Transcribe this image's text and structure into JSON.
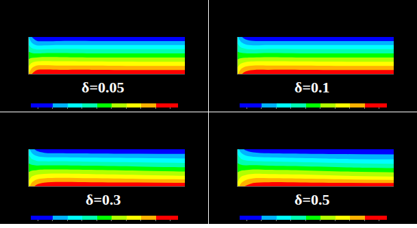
{
  "chart_data": [
    {
      "type": "contour",
      "title": "δ=0.05",
      "x": [
        0,
        0.02,
        0.05,
        0.1,
        0.2,
        0.4,
        0.7,
        1
      ],
      "y": [
        0,
        0.25,
        0.5,
        0.75,
        1
      ],
      "z": [
        [
          7,
          8,
          8.8,
          9,
          9,
          9,
          9,
          9
        ],
        [
          5.8,
          6.4,
          6.8,
          6.9,
          6.8,
          6.8,
          6.7,
          6.7
        ],
        [
          4.5,
          4.5,
          4.5,
          4.6,
          4.6,
          4.5,
          4.5,
          4.5
        ],
        [
          3.2,
          2.6,
          2.2,
          2.2,
          2.3,
          2.3,
          2.3,
          2.3
        ],
        [
          2,
          1,
          0.2,
          0,
          0,
          0,
          0,
          0
        ]
      ],
      "xlim": [
        0,
        1
      ],
      "ylim": [
        0,
        1
      ],
      "xticks": [
        0,
        1
      ],
      "yticks": [
        0,
        1
      ],
      "tick_labels": false,
      "grid": false,
      "colors": [
        "#0000ff",
        "#00b2ff",
        "#00ffff",
        "#00ffb2",
        "#00ff00",
        "#b2ff00",
        "#ffff00",
        "#ffb200",
        "#ff0000"
      ],
      "color_range": [
        0,
        9
      ],
      "color_ticks": [
        0,
        1,
        2,
        3,
        4,
        5,
        6,
        7,
        8,
        9
      ]
    },
    {
      "type": "contour",
      "title": "δ=0.1",
      "x": [
        0,
        0.02,
        0.05,
        0.1,
        0.2,
        0.4,
        0.7,
        1
      ],
      "y": [
        0,
        0.25,
        0.5,
        0.75,
        1
      ],
      "z": [
        [
          6.8,
          7.8,
          8.5,
          8.9,
          9,
          9,
          9,
          9
        ],
        [
          5.7,
          6.2,
          6.6,
          6.8,
          6.8,
          6.8,
          6.7,
          6.7
        ],
        [
          4.5,
          4.5,
          4.5,
          4.5,
          4.6,
          4.5,
          4.5,
          4.5
        ],
        [
          3.3,
          2.8,
          2.4,
          2.2,
          2.3,
          2.3,
          2.3,
          2.3
        ],
        [
          2.2,
          1.2,
          0.5,
          0.1,
          0,
          0,
          0,
          0
        ]
      ],
      "xlim": [
        0,
        1
      ],
      "ylim": [
        0,
        1
      ],
      "xticks": [
        0,
        1
      ],
      "yticks": [
        0,
        1
      ],
      "tick_labels": false,
      "grid": false,
      "colors": [
        "#0000ff",
        "#00b2ff",
        "#00ffff",
        "#00ffb2",
        "#00ff00",
        "#b2ff00",
        "#ffff00",
        "#ffb200",
        "#ff0000"
      ],
      "color_range": [
        0,
        9
      ],
      "color_ticks": [
        0,
        1,
        2,
        3,
        4,
        5,
        6,
        7,
        8,
        9
      ]
    },
    {
      "type": "contour",
      "title": "δ=0.3",
      "x": [
        0,
        0.02,
        0.05,
        0.1,
        0.2,
        0.4,
        0.7,
        1
      ],
      "y": [
        0,
        0.25,
        0.5,
        0.75,
        1
      ],
      "z": [
        [
          6.6,
          7.6,
          8.3,
          8.8,
          9,
          9,
          9,
          9
        ],
        [
          5.6,
          6.1,
          6.5,
          6.7,
          6.8,
          6.7,
          6.5,
          6.3
        ],
        [
          4.5,
          4.5,
          4.5,
          4.6,
          4.6,
          4.5,
          4.3,
          4.1
        ],
        [
          3.4,
          2.9,
          2.5,
          2.3,
          2.3,
          2.2,
          2.1,
          2
        ],
        [
          2.3,
          1.4,
          0.7,
          0.2,
          0,
          0,
          0,
          0
        ]
      ],
      "xlim": [
        0,
        1
      ],
      "ylim": [
        0,
        1
      ],
      "xticks": [
        0,
        1
      ],
      "yticks": [
        0,
        1
      ],
      "tick_labels": false,
      "grid": false,
      "colors": [
        "#0000ff",
        "#00b2ff",
        "#00ffff",
        "#00ffb2",
        "#00ff00",
        "#b2ff00",
        "#ffff00",
        "#ffb200",
        "#ff0000"
      ],
      "color_range": [
        0,
        9
      ],
      "color_ticks": [
        0,
        1,
        2,
        3,
        4,
        5,
        6,
        7,
        8,
        9
      ]
    },
    {
      "type": "contour",
      "title": "δ=0.5",
      "x": [
        0,
        0.02,
        0.05,
        0.1,
        0.2,
        0.4,
        0.7,
        1
      ],
      "y": [
        0,
        0.25,
        0.5,
        0.75,
        1
      ],
      "z": [
        [
          6.4,
          7.4,
          8.1,
          8.7,
          9,
          9,
          9,
          9
        ],
        [
          5.5,
          6,
          6.4,
          6.7,
          6.7,
          6.6,
          6.3,
          6.1
        ],
        [
          4.5,
          4.5,
          4.5,
          4.6,
          4.5,
          4.4,
          4.1,
          3.9
        ],
        [
          3.5,
          3,
          2.6,
          2.4,
          2.3,
          2.1,
          1.9,
          1.8
        ],
        [
          2.4,
          1.5,
          0.8,
          0.3,
          0,
          0,
          0,
          0
        ]
      ],
      "xlim": [
        0,
        1
      ],
      "ylim": [
        0,
        1
      ],
      "xticks": [
        0,
        1
      ],
      "yticks": [
        0,
        1
      ],
      "tick_labels": false,
      "grid": false,
      "colors": [
        "#0000ff",
        "#00b2ff",
        "#00ffff",
        "#00ffb2",
        "#00ff00",
        "#b2ff00",
        "#ffff00",
        "#ffb200",
        "#ff0000"
      ],
      "color_range": [
        0,
        9
      ],
      "color_ticks": [
        0,
        1,
        2,
        3,
        4,
        5,
        6,
        7,
        8,
        9
      ]
    }
  ]
}
